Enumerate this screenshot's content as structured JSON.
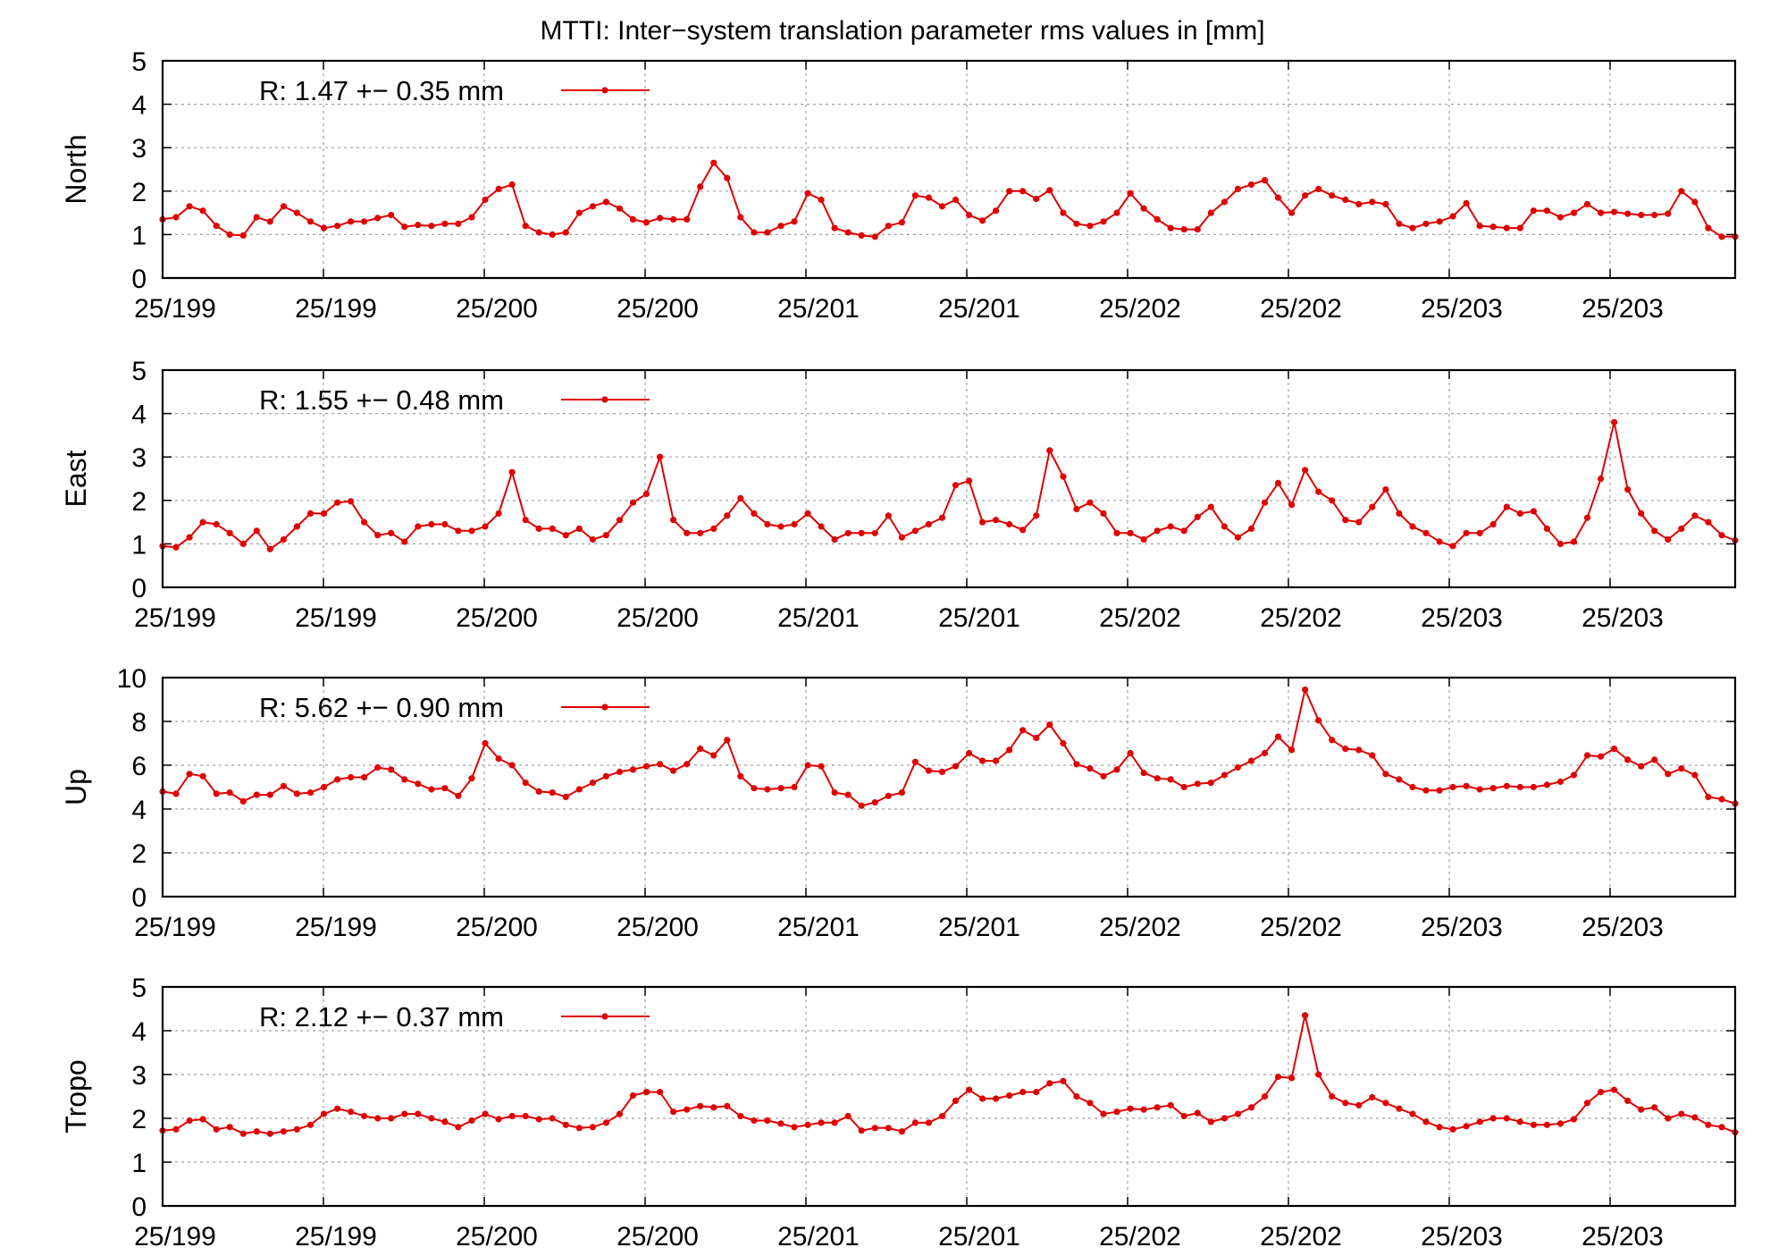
{
  "title": "MTTI: Inter−system translation parameter rms values in [mm]",
  "colors": {
    "series": "#e00000",
    "frame": "#000000",
    "grid": "#a0a0a0"
  },
  "chart_data": [
    {
      "type": "line",
      "ylabel": "North",
      "ylim": [
        0,
        5
      ],
      "yticks": [
        "0",
        "1",
        "2",
        "3",
        "4",
        "5"
      ],
      "xtick_labels": [
        "25/199",
        "25/199",
        "25/200",
        "25/200",
        "25/201",
        "25/201",
        "25/202",
        "25/202",
        "25/203",
        "25/203"
      ],
      "grid": true,
      "legend": {
        "position": "top-left",
        "text": "R:   1.47 +− 0.35 mm"
      },
      "series": [
        {
          "values": [
            1.35,
            1.4,
            1.65,
            1.55,
            1.2,
            1.0,
            0.98,
            1.4,
            1.3,
            1.65,
            1.5,
            1.3,
            1.15,
            1.2,
            1.3,
            1.3,
            1.38,
            1.45,
            1.18,
            1.22,
            1.2,
            1.25,
            1.25,
            1.4,
            1.8,
            2.05,
            2.15,
            1.2,
            1.05,
            1.0,
            1.05,
            1.5,
            1.65,
            1.75,
            1.6,
            1.35,
            1.28,
            1.38,
            1.35,
            1.35,
            2.1,
            2.65,
            2.3,
            1.4,
            1.05,
            1.05,
            1.2,
            1.3,
            1.95,
            1.8,
            1.15,
            1.05,
            0.98,
            0.95,
            1.2,
            1.28,
            1.9,
            1.85,
            1.65,
            1.8,
            1.45,
            1.32,
            1.55,
            2.0,
            2.0,
            1.82,
            2.02,
            1.5,
            1.25,
            1.2,
            1.3,
            1.5,
            1.95,
            1.6,
            1.35,
            1.15,
            1.12,
            1.12,
            1.5,
            1.75,
            2.05,
            2.15,
            2.25,
            1.85,
            1.5,
            1.9,
            2.05,
            1.9,
            1.8,
            1.7,
            1.75,
            1.7,
            1.25,
            1.15,
            1.25,
            1.3,
            1.42,
            1.72,
            1.2,
            1.18,
            1.15,
            1.15,
            1.55,
            1.55,
            1.4,
            1.5,
            1.7,
            1.5,
            1.52,
            1.48,
            1.45,
            1.45,
            1.48,
            2.0,
            1.75,
            1.15,
            0.95,
            0.95
          ]
        }
      ]
    },
    {
      "type": "line",
      "ylabel": "East",
      "ylim": [
        0,
        5
      ],
      "yticks": [
        "0",
        "1",
        "2",
        "3",
        "4",
        "5"
      ],
      "xtick_labels": [
        "25/199",
        "25/199",
        "25/200",
        "25/200",
        "25/201",
        "25/201",
        "25/202",
        "25/202",
        "25/203",
        "25/203"
      ],
      "grid": true,
      "legend": {
        "position": "top-left",
        "text": "R:   1.55 +− 0.48 mm"
      },
      "series": [
        {
          "values": [
            0.95,
            0.92,
            1.15,
            1.5,
            1.45,
            1.25,
            1.0,
            1.3,
            0.88,
            1.1,
            1.4,
            1.7,
            1.7,
            1.95,
            1.98,
            1.5,
            1.2,
            1.25,
            1.05,
            1.4,
            1.45,
            1.45,
            1.3,
            1.3,
            1.4,
            1.7,
            2.65,
            1.55,
            1.35,
            1.35,
            1.2,
            1.35,
            1.1,
            1.2,
            1.55,
            1.95,
            2.15,
            3.0,
            1.55,
            1.25,
            1.25,
            1.35,
            1.65,
            2.05,
            1.7,
            1.45,
            1.4,
            1.45,
            1.7,
            1.4,
            1.1,
            1.25,
            1.25,
            1.25,
            1.65,
            1.15,
            1.3,
            1.45,
            1.6,
            2.35,
            2.45,
            1.5,
            1.55,
            1.45,
            1.32,
            1.65,
            3.15,
            2.55,
            1.8,
            1.95,
            1.7,
            1.25,
            1.25,
            1.1,
            1.3,
            1.4,
            1.3,
            1.62,
            1.85,
            1.4,
            1.15,
            1.35,
            1.95,
            2.4,
            1.9,
            2.7,
            2.2,
            2.0,
            1.55,
            1.5,
            1.85,
            2.25,
            1.7,
            1.4,
            1.25,
            1.05,
            0.95,
            1.25,
            1.25,
            1.45,
            1.85,
            1.7,
            1.75,
            1.35,
            1.0,
            1.05,
            1.6,
            2.5,
            3.8,
            2.25,
            1.7,
            1.3,
            1.1,
            1.35,
            1.65,
            1.5,
            1.2,
            1.08
          ]
        }
      ]
    },
    {
      "type": "line",
      "ylabel": "Up",
      "ylim": [
        0,
        10
      ],
      "yticks": [
        "0",
        "2",
        "4",
        "6",
        "8",
        "10"
      ],
      "xtick_labels": [
        "25/199",
        "25/199",
        "25/200",
        "25/200",
        "25/201",
        "25/201",
        "25/202",
        "25/202",
        "25/203",
        "25/203"
      ],
      "grid": true,
      "legend": {
        "position": "top-left",
        "text": "R:   5.62 +− 0.90 mm"
      },
      "series": [
        {
          "values": [
            4.8,
            4.7,
            5.6,
            5.5,
            4.7,
            4.75,
            4.35,
            4.65,
            4.65,
            5.05,
            4.7,
            4.75,
            5.0,
            5.35,
            5.45,
            5.45,
            5.9,
            5.8,
            5.35,
            5.15,
            4.9,
            4.95,
            4.6,
            5.4,
            7.0,
            6.3,
            6.0,
            5.2,
            4.8,
            4.75,
            4.55,
            4.9,
            5.2,
            5.5,
            5.7,
            5.8,
            5.95,
            6.05,
            5.75,
            6.05,
            6.75,
            6.45,
            7.15,
            5.5,
            4.95,
            4.9,
            4.95,
            5.0,
            6.0,
            5.95,
            4.75,
            4.65,
            4.15,
            4.3,
            4.6,
            4.75,
            6.15,
            5.75,
            5.7,
            5.95,
            6.55,
            6.2,
            6.2,
            6.7,
            7.6,
            7.25,
            7.85,
            7.0,
            6.05,
            5.85,
            5.5,
            5.8,
            6.55,
            5.65,
            5.4,
            5.35,
            5.0,
            5.15,
            5.2,
            5.55,
            5.9,
            6.2,
            6.55,
            7.3,
            6.7,
            9.45,
            8.05,
            7.15,
            6.75,
            6.7,
            6.45,
            5.6,
            5.35,
            5.0,
            4.85,
            4.85,
            5.0,
            5.05,
            4.9,
            4.95,
            5.05,
            5.0,
            5.0,
            5.1,
            5.25,
            5.55,
            6.45,
            6.4,
            6.75,
            6.25,
            5.95,
            6.25,
            5.6,
            5.85,
            5.55,
            4.55,
            4.45,
            4.25
          ]
        }
      ]
    },
    {
      "type": "line",
      "ylabel": "Tropo",
      "ylim": [
        0,
        5
      ],
      "yticks": [
        "0",
        "1",
        "2",
        "3",
        "4",
        "5"
      ],
      "xtick_labels": [
        "25/199",
        "25/199",
        "25/200",
        "25/200",
        "25/201",
        "25/201",
        "25/202",
        "25/202",
        "25/203",
        "25/203"
      ],
      "grid": true,
      "legend": {
        "position": "top-left",
        "text": "R:   2.12 +− 0.37 mm"
      },
      "series": [
        {
          "values": [
            1.72,
            1.75,
            1.95,
            1.98,
            1.75,
            1.8,
            1.65,
            1.7,
            1.65,
            1.7,
            1.75,
            1.85,
            2.1,
            2.22,
            2.15,
            2.05,
            2.0,
            2.0,
            2.1,
            2.1,
            2.0,
            1.92,
            1.8,
            1.95,
            2.1,
            1.98,
            2.05,
            2.05,
            1.98,
            2.0,
            1.85,
            1.78,
            1.8,
            1.9,
            2.1,
            2.52,
            2.6,
            2.6,
            2.15,
            2.2,
            2.28,
            2.25,
            2.28,
            2.05,
            1.95,
            1.95,
            1.88,
            1.8,
            1.85,
            1.9,
            1.9,
            2.05,
            1.72,
            1.78,
            1.78,
            1.7,
            1.9,
            1.9,
            2.05,
            2.4,
            2.65,
            2.45,
            2.45,
            2.52,
            2.6,
            2.6,
            2.8,
            2.85,
            2.5,
            2.35,
            2.1,
            2.15,
            2.22,
            2.2,
            2.25,
            2.3,
            2.05,
            2.12,
            1.92,
            2.0,
            2.1,
            2.25,
            2.5,
            2.95,
            2.92,
            4.35,
            3.0,
            2.5,
            2.35,
            2.3,
            2.48,
            2.35,
            2.22,
            2.1,
            1.92,
            1.8,
            1.75,
            1.82,
            1.92,
            2.0,
            2.0,
            1.92,
            1.85,
            1.85,
            1.88,
            1.98,
            2.35,
            2.6,
            2.65,
            2.4,
            2.2,
            2.25,
            2.0,
            2.1,
            2.02,
            1.85,
            1.8,
            1.68
          ]
        }
      ]
    }
  ]
}
